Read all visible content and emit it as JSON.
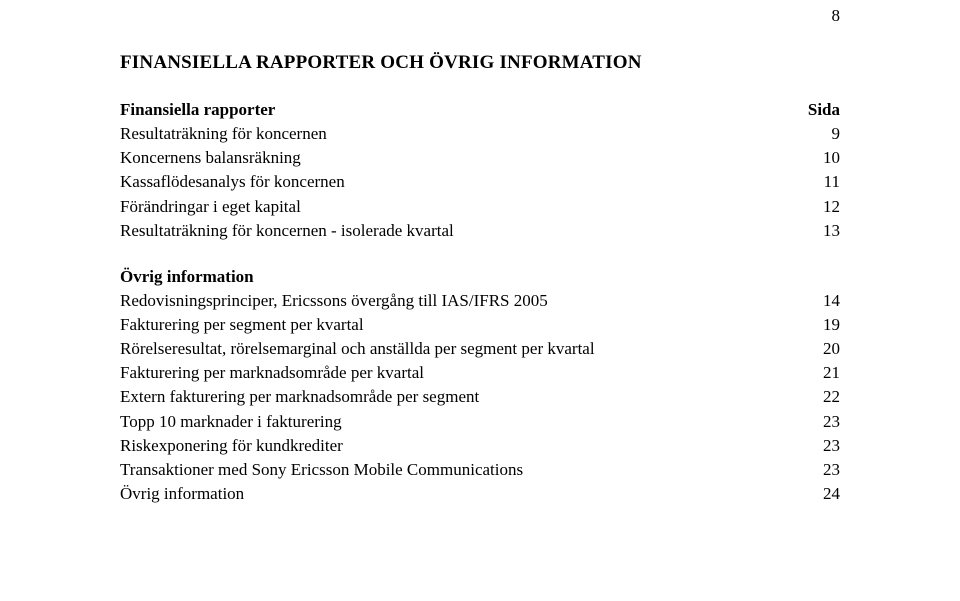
{
  "page_number": "8",
  "title": "FINANSIELLA RAPPORTER OCH ÖVRIG INFORMATION",
  "section1": {
    "header": {
      "label": "Finansiella rapporter",
      "value": "Sida"
    },
    "items": [
      {
        "label": "Resultaträkning för koncernen",
        "value": "9"
      },
      {
        "label": "Koncernens balansräkning",
        "value": "10"
      },
      {
        "label": "Kassaflödesanalys för koncernen",
        "value": "11"
      },
      {
        "label": "Förändringar i eget kapital",
        "value": "12"
      },
      {
        "label": "Resultaträkning för koncernen - isolerade kvartal",
        "value": "13"
      }
    ]
  },
  "section2": {
    "header": {
      "label": "Övrig information",
      "value": ""
    },
    "items": [
      {
        "label": "Redovisningsprinciper, Ericssons övergång till IAS/IFRS 2005",
        "value": "14"
      },
      {
        "label": "Fakturering per segment per kvartal",
        "value": "19"
      },
      {
        "label": "Rörelseresultat, rörelsemarginal och anställda per segment per kvartal",
        "value": "20"
      },
      {
        "label": "Fakturering per marknadsområde per kvartal",
        "value": "21"
      },
      {
        "label": "Extern fakturering per marknadsområde per segment",
        "value": "22"
      },
      {
        "label": "Topp 10 marknader i fakturering",
        "value": "23"
      },
      {
        "label": "Riskexponering för kundkrediter",
        "value": "23"
      },
      {
        "label": "Transaktioner med Sony Ericsson Mobile Communications",
        "value": "23"
      },
      {
        "label": "Övrig information",
        "value": "24"
      }
    ]
  }
}
